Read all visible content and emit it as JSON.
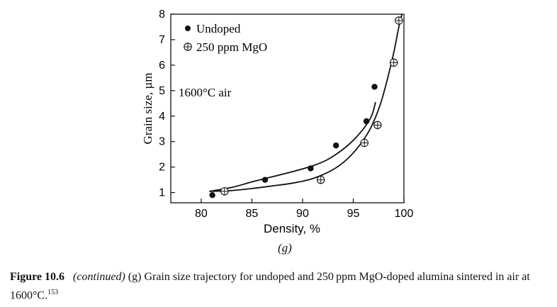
{
  "chart_data": {
    "type": "scatter",
    "xlabel": "Density, %",
    "ylabel": "Grain size, µm",
    "xlim": [
      77,
      100
    ],
    "ylim": [
      0.6,
      8
    ],
    "x_ticks": [
      80,
      85,
      90,
      95,
      100
    ],
    "y_ticks": [
      1,
      2,
      3,
      4,
      5,
      6,
      7,
      8
    ],
    "grid": false,
    "legend_position": "top-left",
    "annotation": "1600°C air",
    "series": [
      {
        "name": "Undoped",
        "marker": "filled-circle",
        "points": [
          [
            81.1,
            0.9
          ],
          [
            82.3,
            1.05
          ],
          [
            86.3,
            1.5
          ],
          [
            90.8,
            1.95
          ],
          [
            93.3,
            2.85
          ],
          [
            96.3,
            3.8
          ],
          [
            97.1,
            5.15
          ]
        ],
        "fit_curve": [
          [
            80.8,
            1.05
          ],
          [
            83,
            1.2
          ],
          [
            85,
            1.42
          ],
          [
            87,
            1.62
          ],
          [
            89,
            1.82
          ],
          [
            91,
            2.05
          ],
          [
            92.5,
            2.3
          ],
          [
            94,
            2.7
          ],
          [
            95,
            3.05
          ],
          [
            96,
            3.5
          ],
          [
            96.8,
            4.0
          ],
          [
            97.2,
            4.55
          ]
        ]
      },
      {
        "name": "250 ppm MgO",
        "marker": "crossed-circle",
        "points": [
          [
            82.3,
            1.05
          ],
          [
            91.8,
            1.5
          ],
          [
            96.1,
            2.95
          ],
          [
            97.4,
            3.65
          ],
          [
            99.0,
            6.1
          ],
          [
            99.5,
            7.75
          ]
        ],
        "fit_curve": [
          [
            80.8,
            1.05
          ],
          [
            83,
            1.08
          ],
          [
            85,
            1.16
          ],
          [
            87,
            1.26
          ],
          [
            89,
            1.37
          ],
          [
            91,
            1.55
          ],
          [
            93,
            1.9
          ],
          [
            94.5,
            2.35
          ],
          [
            95.8,
            2.95
          ],
          [
            96.8,
            3.6
          ],
          [
            97.7,
            4.5
          ],
          [
            98.4,
            5.5
          ],
          [
            99.0,
            6.5
          ],
          [
            99.5,
            7.5
          ],
          [
            99.8,
            8.0
          ]
        ]
      }
    ]
  },
  "panel_label": "(g)",
  "caption": {
    "figure_label": "Figure 10.6",
    "continued": "(continued)",
    "text": "(g) Grain size trajectory for undoped and 250 ppm MgO-doped alumina sintered in air at 1600°C.",
    "ref": "153"
  }
}
